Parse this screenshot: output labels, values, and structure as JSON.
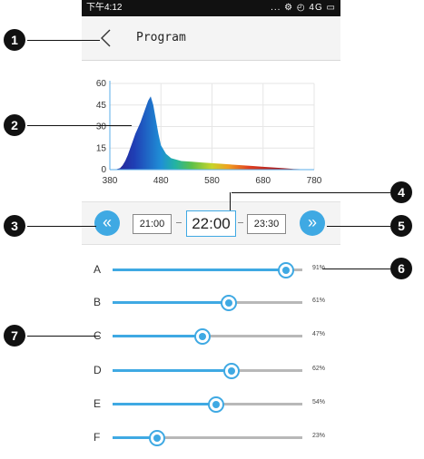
{
  "status_bar": {
    "time": "下午4:12",
    "icons": "... ⚙ ◴ 4G ▭"
  },
  "header": {
    "title": "Program"
  },
  "chart_data": {
    "type": "area",
    "x_range": [
      380,
      780
    ],
    "y_range": [
      0,
      60
    ],
    "x_ticks": [
      "380",
      "480",
      "580",
      "680",
      "780"
    ],
    "y_ticks": [
      "60",
      "45",
      "30",
      "15",
      "0"
    ],
    "grid": true,
    "series": [
      {
        "x": [
          380,
          390,
          400,
          405,
          410,
          415,
          420,
          425,
          430,
          435,
          440,
          445,
          450,
          455,
          460,
          465,
          470,
          475,
          480,
          490,
          500,
          520,
          540,
          560,
          580,
          600,
          620,
          640,
          660,
          680,
          700,
          720,
          740,
          760,
          780
        ],
        "y": [
          0,
          0,
          1,
          3,
          6,
          10,
          15,
          20,
          25,
          29,
          33,
          38,
          43,
          48,
          51,
          45,
          35,
          25,
          17,
          11,
          8,
          6,
          5.5,
          5,
          4.5,
          4,
          3.5,
          3,
          2.5,
          2,
          1.5,
          1,
          0.5,
          0.2,
          0
        ]
      }
    ]
  },
  "time_bar": {
    "prev": "21:00",
    "current": "22:00",
    "next": "23:30",
    "prev_icon": "«",
    "next_icon": "»"
  },
  "channels": [
    {
      "label": "A",
      "value": 91,
      "value_label": "91%"
    },
    {
      "label": "B",
      "value": 61,
      "value_label": "61%"
    },
    {
      "label": "C",
      "value": 47,
      "value_label": "47%"
    },
    {
      "label": "D",
      "value": 62,
      "value_label": "62%"
    },
    {
      "label": "E",
      "value": 54,
      "value_label": "54%"
    },
    {
      "label": "F",
      "value": 23,
      "value_label": "23%"
    }
  ],
  "callouts": [
    "1",
    "2",
    "3",
    "4",
    "5",
    "6",
    "7"
  ],
  "colors": {
    "accent": "#3fa9e3",
    "callout": "#111111"
  }
}
